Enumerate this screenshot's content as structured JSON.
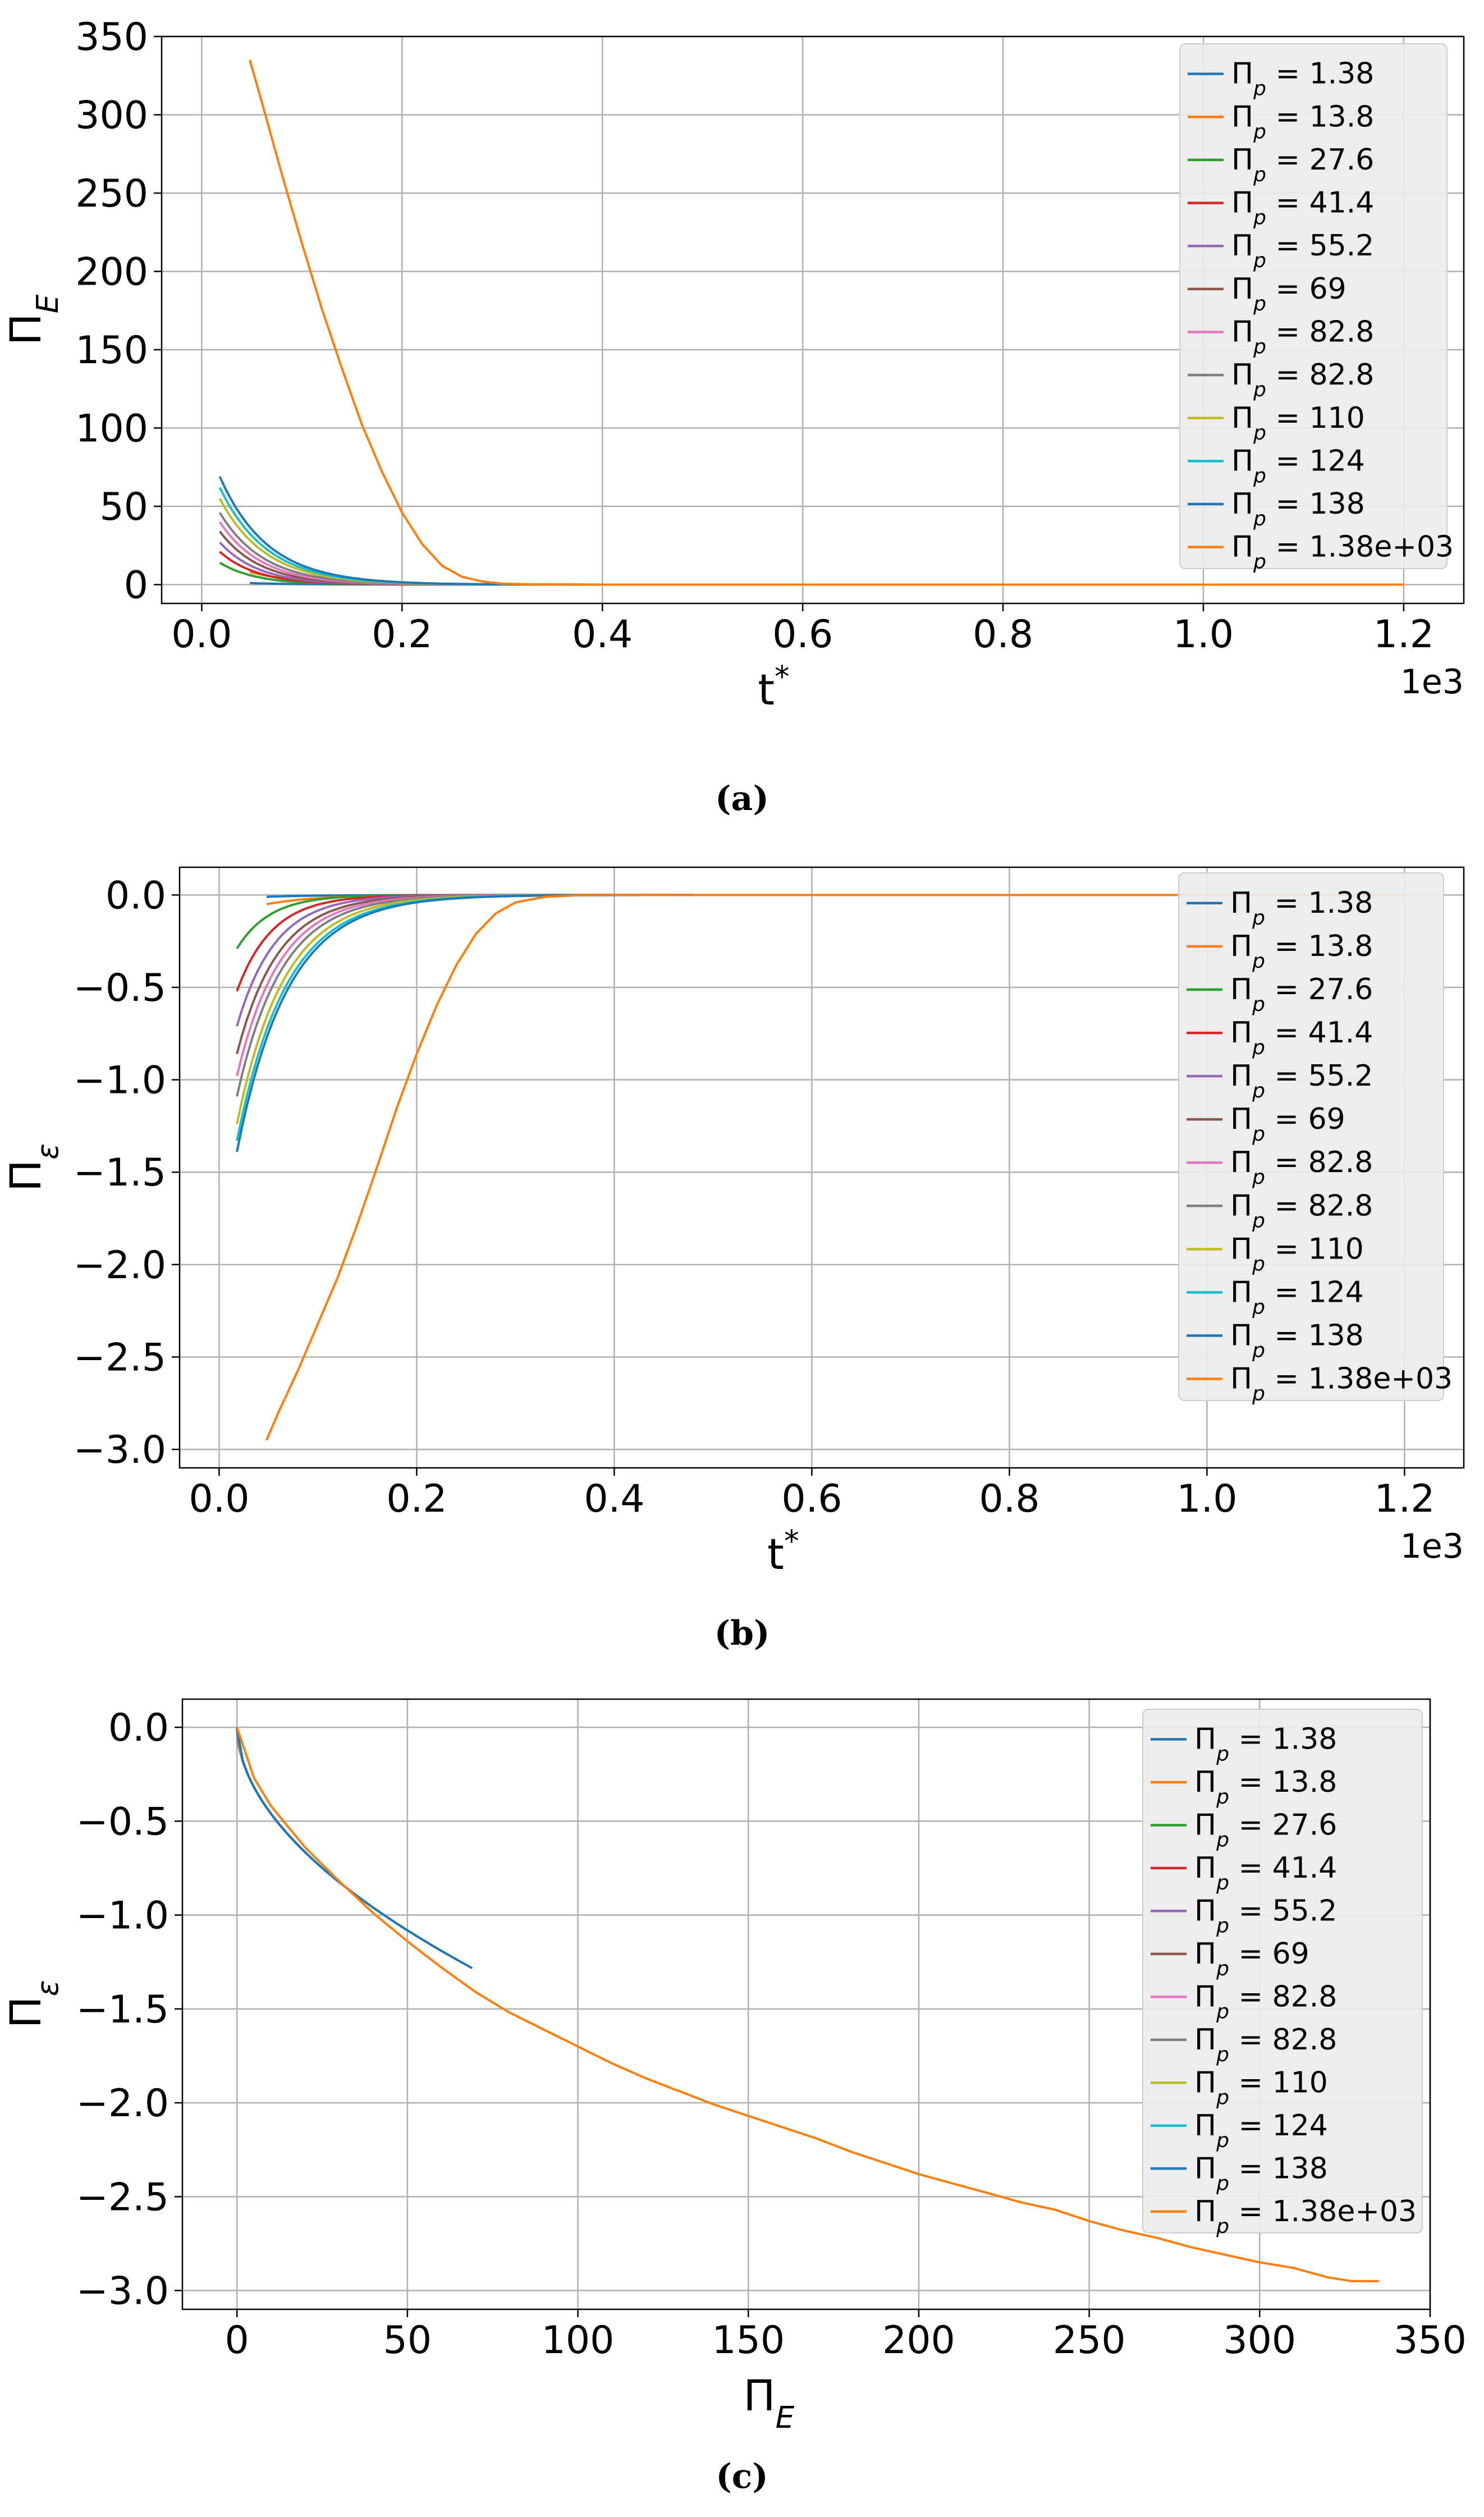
{
  "colors": [
    "#1f77b4",
    "#ff7f0e",
    "#2ca02c",
    "#d62728",
    "#9467bd",
    "#8c564b",
    "#e377c2",
    "#7f7f7f",
    "#bcbd22",
    "#17becf",
    "#1f77b4",
    "#ff7f0e"
  ],
  "legend_labels": [
    "1.38",
    "13.8",
    "27.6",
    "41.4",
    "55.2",
    "69",
    "82.8",
    "82.8",
    "110",
    "124",
    "138",
    "1.38e+03"
  ],
  "legend_symbol": "Π",
  "legend_subscript": "p",
  "chart_data": [
    {
      "id": "a",
      "type": "line",
      "caption": "(a)",
      "xlabel": "t",
      "xlabel_sup": "*",
      "ylabel": "Π",
      "ylabel_sub": "E",
      "x_offset_label": "1e3",
      "xlim": [
        -0.04,
        1.26
      ],
      "ylim": [
        -12,
        350
      ],
      "xticks": [
        0.0,
        0.2,
        0.4,
        0.6,
        0.8,
        1.0,
        1.2
      ],
      "xtick_labels": [
        "0.0",
        "0.2",
        "0.4",
        "0.6",
        "0.8",
        "1.0",
        "1.2"
      ],
      "yticks": [
        0,
        50,
        100,
        150,
        200,
        250,
        300,
        350
      ],
      "ytick_labels": [
        "0",
        "50",
        "100",
        "150",
        "200",
        "250",
        "300",
        "350"
      ],
      "grid": true,
      "legend_position": "top-right",
      "series_model": "exp-decay",
      "series": [
        {
          "name": "Πp = 1.38",
          "x_start": 0.048,
          "x_end": 0.48,
          "y0": 1,
          "k": 20
        },
        {
          "name": "Πp = 13.8",
          "x_start": 0.048,
          "x_end": 0.48,
          "y0": 8,
          "k": 20
        },
        {
          "name": "Πp = 27.6",
          "x_start": 0.018,
          "x_end": 0.48,
          "y0": 14,
          "k": 28
        },
        {
          "name": "Πp = 41.4",
          "x_start": 0.018,
          "x_end": 0.48,
          "y0": 21,
          "k": 27
        },
        {
          "name": "Πp = 55.2",
          "x_start": 0.018,
          "x_end": 0.48,
          "y0": 27,
          "k": 26
        },
        {
          "name": "Πp = 69",
          "x_start": 0.018,
          "x_end": 0.48,
          "y0": 34,
          "k": 25
        },
        {
          "name": "Πp = 82.8",
          "x_start": 0.018,
          "x_end": 0.48,
          "y0": 40,
          "k": 24
        },
        {
          "name": "Πp = 82.8",
          "x_start": 0.018,
          "x_end": 0.48,
          "y0": 46,
          "k": 23
        },
        {
          "name": "Πp = 110",
          "x_start": 0.018,
          "x_end": 0.48,
          "y0": 55,
          "k": 22
        },
        {
          "name": "Πp = 124",
          "x_start": 0.018,
          "x_end": 0.48,
          "y0": 62,
          "k": 21.5
        },
        {
          "name": "Πp = 138",
          "x_start": 0.018,
          "x_end": 0.48,
          "y0": 69,
          "k": 21
        },
        {
          "name": "Πp = 1.38e+03",
          "x_start": 0.048,
          "x_end": 1.2,
          "y0": 335,
          "k": 0,
          "points": [
            [
              0.048,
              335
            ],
            [
              0.06,
              308
            ],
            [
              0.08,
              262
            ],
            [
              0.1,
              218
            ],
            [
              0.12,
              176
            ],
            [
              0.14,
              138
            ],
            [
              0.16,
              102
            ],
            [
              0.18,
              72
            ],
            [
              0.2,
              46
            ],
            [
              0.22,
              26
            ],
            [
              0.24,
              12
            ],
            [
              0.26,
              5
            ],
            [
              0.28,
              2
            ],
            [
              0.3,
              0.6
            ],
            [
              0.33,
              0.2
            ],
            [
              0.4,
              0
            ],
            [
              0.6,
              0
            ],
            [
              0.8,
              0
            ],
            [
              1.0,
              0
            ],
            [
              1.2,
              0
            ]
          ]
        }
      ]
    },
    {
      "id": "b",
      "type": "line",
      "caption": "(b)",
      "xlabel": "t",
      "xlabel_sup": "*",
      "ylabel": "Π",
      "ylabel_sub": "ε",
      "x_offset_label": "1e3",
      "xlim": [
        -0.04,
        1.26
      ],
      "ylim": [
        -3.1,
        0.15
      ],
      "xticks": [
        0.0,
        0.2,
        0.4,
        0.6,
        0.8,
        1.0,
        1.2
      ],
      "xtick_labels": [
        "0.0",
        "0.2",
        "0.4",
        "0.6",
        "0.8",
        "1.0",
        "1.2"
      ],
      "yticks": [
        0.0,
        -0.5,
        -1.0,
        -1.5,
        -2.0,
        -2.5,
        -3.0
      ],
      "ytick_labels": [
        "0.0",
        "−0.5",
        "−1.0",
        "−1.5",
        "−2.0",
        "−2.5",
        "−3.0"
      ],
      "grid": true,
      "legend_position": "top-right",
      "series_model": "exp-recovery",
      "series": [
        {
          "name": "Πp = 1.38",
          "x_start": 0.048,
          "x_end": 0.48,
          "y0": -0.01,
          "k": 20
        },
        {
          "name": "Πp = 13.8",
          "x_start": 0.048,
          "x_end": 0.48,
          "y0": -0.05,
          "k": 20
        },
        {
          "name": "Πp = 27.6",
          "x_start": 0.018,
          "x_end": 0.48,
          "y0": -0.29,
          "k": 30
        },
        {
          "name": "Πp = 41.4",
          "x_start": 0.018,
          "x_end": 0.48,
          "y0": -0.52,
          "k": 28
        },
        {
          "name": "Πp = 55.2",
          "x_start": 0.018,
          "x_end": 0.48,
          "y0": -0.71,
          "k": 26
        },
        {
          "name": "Πp = 69",
          "x_start": 0.018,
          "x_end": 0.48,
          "y0": -0.86,
          "k": 24
        },
        {
          "name": "Πp = 82.8",
          "x_start": 0.018,
          "x_end": 0.48,
          "y0": -0.98,
          "k": 23
        },
        {
          "name": "Πp = 82.8",
          "x_start": 0.018,
          "x_end": 0.48,
          "y0": -1.09,
          "k": 22
        },
        {
          "name": "Πp = 110",
          "x_start": 0.018,
          "x_end": 0.48,
          "y0": -1.24,
          "k": 21
        },
        {
          "name": "Πp = 124",
          "x_start": 0.018,
          "x_end": 0.48,
          "y0": -1.33,
          "k": 20
        },
        {
          "name": "Πp = 138",
          "x_start": 0.018,
          "x_end": 0.48,
          "y0": -1.39,
          "k": 19.5
        },
        {
          "name": "Πp = 1.38e+03",
          "x_start": 0.048,
          "x_end": 1.2,
          "y0": -2.95,
          "k": 0,
          "points": [
            [
              0.048,
              -2.95
            ],
            [
              0.06,
              -2.8
            ],
            [
              0.08,
              -2.57
            ],
            [
              0.1,
              -2.32
            ],
            [
              0.12,
              -2.07
            ],
            [
              0.14,
              -1.78
            ],
            [
              0.16,
              -1.47
            ],
            [
              0.18,
              -1.15
            ],
            [
              0.2,
              -0.86
            ],
            [
              0.22,
              -0.6
            ],
            [
              0.24,
              -0.38
            ],
            [
              0.26,
              -0.21
            ],
            [
              0.28,
              -0.1
            ],
            [
              0.3,
              -0.04
            ],
            [
              0.33,
              -0.01
            ],
            [
              0.37,
              0.0
            ],
            [
              0.5,
              0.0
            ],
            [
              0.8,
              0.0
            ],
            [
              1.0,
              0.0
            ],
            [
              1.2,
              0.0
            ]
          ]
        }
      ]
    },
    {
      "id": "c",
      "type": "line",
      "caption": "(c)",
      "xlabel": "Π",
      "xlabel_sub": "E",
      "ylabel": "Π",
      "ylabel_sub": "ε",
      "xlim": [
        -16,
        350
      ],
      "ylim": [
        -3.1,
        0.15
      ],
      "xticks": [
        0,
        50,
        100,
        150,
        200,
        250,
        300,
        350
      ],
      "xtick_labels": [
        "0",
        "50",
        "100",
        "150",
        "200",
        "250",
        "300",
        "350"
      ],
      "yticks": [
        0.0,
        -0.5,
        -1.0,
        -1.5,
        -2.0,
        -2.5,
        -3.0
      ],
      "ytick_labels": [
        "0.0",
        "−0.5",
        "−1.0",
        "−1.5",
        "−2.0",
        "−2.5",
        "−3.0"
      ],
      "grid": true,
      "legend_position": "top-right",
      "series_model": "power-curve",
      "series": [
        {
          "name": "Πp = 1.38",
          "x_end": 1
        },
        {
          "name": "Πp = 13.8",
          "x_end": 8
        },
        {
          "name": "Πp = 27.6",
          "x_end": 14
        },
        {
          "name": "Πp = 41.4",
          "x_end": 21
        },
        {
          "name": "Πp = 55.2",
          "x_end": 27
        },
        {
          "name": "Πp = 69",
          "x_end": 34
        },
        {
          "name": "Πp = 82.8",
          "x_end": 40
        },
        {
          "name": "Πp = 82.8",
          "x_end": 46
        },
        {
          "name": "Πp = 110",
          "x_end": 55
        },
        {
          "name": "Πp = 124",
          "x_end": 62
        },
        {
          "name": "Πp = 138",
          "x_end": 69
        },
        {
          "name": "Πp = 1.38e+03",
          "x_end": 335,
          "points": [
            [
              0,
              0
            ],
            [
              5,
              -0.27
            ],
            [
              10,
              -0.42
            ],
            [
              20,
              -0.64
            ],
            [
              30,
              -0.82
            ],
            [
              40,
              -0.99
            ],
            [
              50,
              -1.14
            ],
            [
              60,
              -1.28
            ],
            [
              70,
              -1.41
            ],
            [
              80,
              -1.52
            ],
            [
              90,
              -1.61
            ],
            [
              100,
              -1.7
            ],
            [
              110,
              -1.79
            ],
            [
              120,
              -1.87
            ],
            [
              130,
              -1.94
            ],
            [
              140,
              -2.01
            ],
            [
              150,
              -2.07
            ],
            [
              160,
              -2.13
            ],
            [
              170,
              -2.19
            ],
            [
              180,
              -2.26
            ],
            [
              190,
              -2.32
            ],
            [
              200,
              -2.38
            ],
            [
              210,
              -2.43
            ],
            [
              220,
              -2.48
            ],
            [
              230,
              -2.53
            ],
            [
              240,
              -2.57
            ],
            [
              250,
              -2.63
            ],
            [
              260,
              -2.68
            ],
            [
              270,
              -2.72
            ],
            [
              280,
              -2.77
            ],
            [
              290,
              -2.81
            ],
            [
              300,
              -2.85
            ],
            [
              310,
              -2.88
            ],
            [
              320,
              -2.93
            ],
            [
              327,
              -2.95
            ],
            [
              335,
              -2.95
            ]
          ]
        }
      ]
    }
  ]
}
